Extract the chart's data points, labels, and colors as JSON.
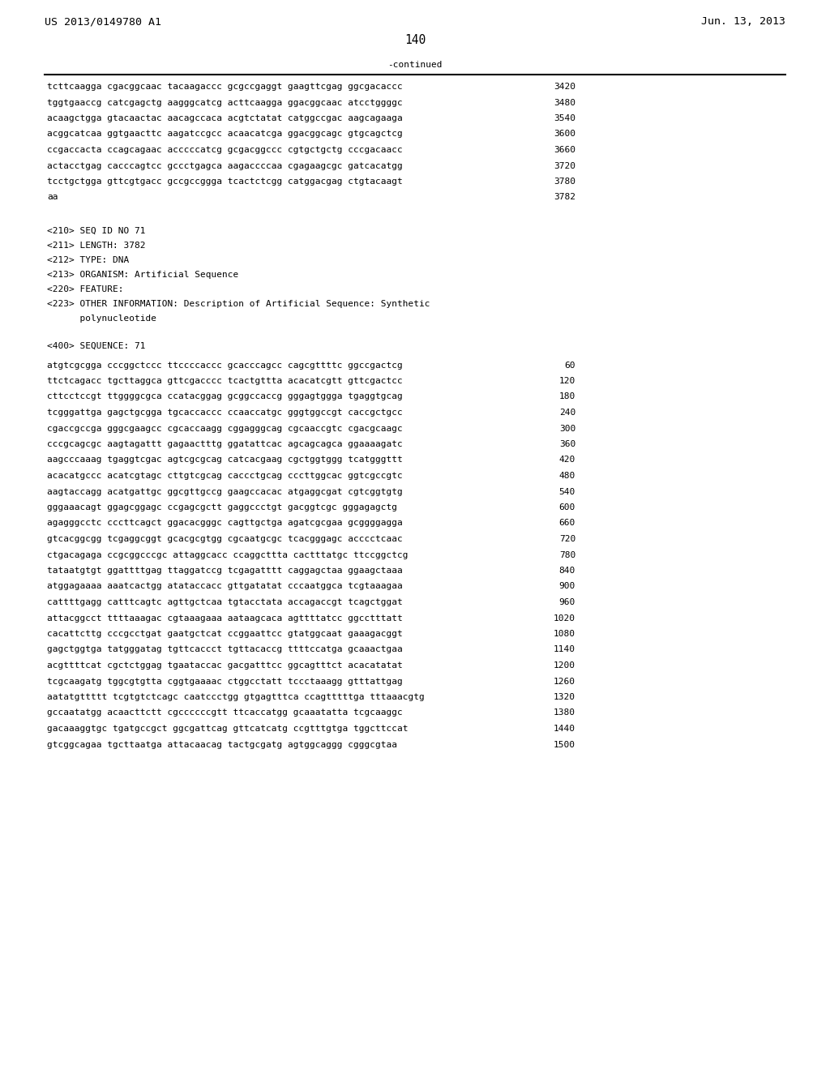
{
  "header_left": "US 2013/0149780 A1",
  "header_right": "Jun. 13, 2013",
  "page_number": "140",
  "continued_label": "-continued",
  "background_color": "#ffffff",
  "text_color": "#000000",
  "font_size": 8.0,
  "header_font_size": 9.5,
  "page_num_font_size": 10.5,
  "sequence_lines_top": [
    [
      "tcttcaagga cgacggcaac tacaagaccc gcgccgaggt gaagttcgag ggcgacaccc",
      "3420"
    ],
    [
      "tggtgaaccg catcgagctg aagggcatcg acttcaagga ggacggcaac atcctggggc",
      "3480"
    ],
    [
      "acaagctgga gtacaactac aacagccaca acgtctatat catggccgac aagcagaaga",
      "3540"
    ],
    [
      "acggcatcaa ggtgaacttc aagatccgcc acaacatcga ggacggcagc gtgcagctcg",
      "3600"
    ],
    [
      "ccgaccacta ccagcagaac acccccatcg gcgacggccc cgtgctgctg cccgacaacc",
      "3660"
    ],
    [
      "actacctgag cacccagtcc gccctgagca aagaccccaa cgagaagcgc gatcacatgg",
      "3720"
    ],
    [
      "tcctgctgga gttcgtgacc gccgccggga tcactctcgg catggacgag ctgtacaagt",
      "3780"
    ],
    [
      "aa",
      "3782"
    ]
  ],
  "metadata_lines": [
    "<210> SEQ ID NO 71",
    "<211> LENGTH: 3782",
    "<212> TYPE: DNA",
    "<213> ORGANISM: Artificial Sequence",
    "<220> FEATURE:",
    "<223> OTHER INFORMATION: Description of Artificial Sequence: Synthetic",
    "      polynucleotide"
  ],
  "sequence_label": "<400> SEQUENCE: 71",
  "sequence_lines_bottom": [
    [
      "atgtcgcgga cccggctccc ttccccaccc gcacccagcc cagcgttttc ggccgactcg",
      "60"
    ],
    [
      "ttctcagacc tgcttaggca gttcgacccc tcactgttta acacatcgtt gttcgactcc",
      "120"
    ],
    [
      "cttcctccgt ttggggcgca ccatacggag gcggccaccg gggagtggga tgaggtgcag",
      "180"
    ],
    [
      "tcgggattga gagctgcgga tgcaccaccc ccaaccatgc gggtggccgt caccgctgcc",
      "240"
    ],
    [
      "cgaccgccga gggcgaagcc cgcaccaagg cggagggcag cgcaaccgtc cgacgcaagc",
      "300"
    ],
    [
      "cccgcagcgc aagtagattt gagaactttg ggatattcac agcagcagca ggaaaagatc",
      "360"
    ],
    [
      "aagcccaaag tgaggtcgac agtcgcgcag catcacgaag cgctggtggg tcatgggttt",
      "420"
    ],
    [
      "acacatgccc acatcgtagc cttgtcgcag caccctgcag cccttggcac ggtcgccgtc",
      "480"
    ],
    [
      "aagtaccagg acatgattgc ggcgttgccg gaagccacac atgaggcgat cgtcggtgtg",
      "540"
    ],
    [
      "gggaaacagt ggagcggagc ccgagcgctt gaggccctgt gacggtcgc gggagagctg",
      "600"
    ],
    [
      "agagggcctc cccttcagct ggacacgggc cagttgctga agatcgcgaa gcggggagga",
      "660"
    ],
    [
      "gtcacggcgg tcgaggcggt gcacgcgtgg cgcaatgcgc tcacgggagc acccctcaac",
      "720"
    ],
    [
      "ctgacagaga ccgcggcccgc attaggcacc ccaggcttta cactttatgc ttccggctcg",
      "780"
    ],
    [
      "tataatgtgt ggattttgag ttaggatccg tcgagatttt caggagctaa ggaagctaaa",
      "840"
    ],
    [
      "atggagaaaa aaatcactgg atataccacc gttgatatat cccaatggca tcgtaaagaa",
      "900"
    ],
    [
      "cattttgagg catttcagtc agttgctcaa tgtacctata accagaccgt tcagctggat",
      "960"
    ],
    [
      "attacggcct ttttaaagac cgtaaagaaa aataagcaca agttttatcc ggcctttatt",
      "1020"
    ],
    [
      "cacattcttg cccgcctgat gaatgctcat ccggaattcc gtatggcaat gaaagacggt",
      "1080"
    ],
    [
      "gagctggtga tatgggatag tgttcaccct tgttacaccg ttttccatga gcaaactgaa",
      "1140"
    ],
    [
      "acgttttcat cgctctggag tgaataccac gacgatttcc ggcagtttct acacatatat",
      "1200"
    ],
    [
      "tcgcaagatg tggcgtgtta cggtgaaaac ctggcctatt tccctaaagg gtttattgag",
      "1260"
    ],
    [
      "aatatgttttt tcgtgtctcagc caatccctgg gtgagtttca ccagtttttga tttaaacgtg",
      "1320"
    ],
    [
      "gccaatatgg acaacttctt cgccccccgtt ttcaccatgg gcaaatatta tcgcaaggc",
      "1380"
    ],
    [
      "gacaaaggtgc tgatgccgct ggcgattcag gttcatcatg ccgtttgtga tggcttccat",
      "1440"
    ],
    [
      "gtcggcagaa tgcttaatga attacaacag tactgcgatg agtggcaggg cgggcgtaa",
      "1500"
    ]
  ]
}
